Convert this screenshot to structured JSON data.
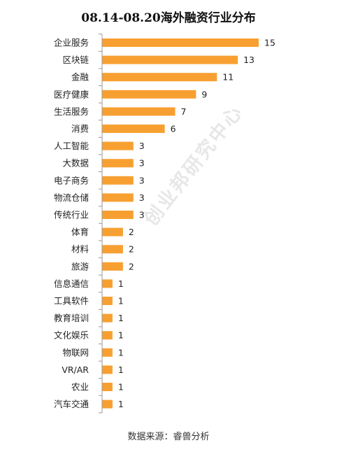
{
  "title": "08.14-08.20海外融资行业分布",
  "source": "数据来源：睿兽分析",
  "watermark": "创业邦研究中心",
  "colors": {
    "bar": "#F7A031",
    "axis": "#999999",
    "text": "#222222"
  },
  "chart_data": {
    "type": "bar",
    "orientation": "horizontal",
    "title": "08.14-08.20海外融资行业分布",
    "categories": [
      "企业服务",
      "区块链",
      "金融",
      "医疗健康",
      "生活服务",
      "消费",
      "人工智能",
      "大数据",
      "电子商务",
      "物流仓储",
      "传统行业",
      "体育",
      "材料",
      "旅游",
      "信息通信",
      "工具软件",
      "教育培训",
      "文化娱乐",
      "物联网",
      "VR/AR",
      "农业",
      "汽车交通"
    ],
    "values": [
      15,
      13,
      11,
      9,
      7,
      6,
      3,
      3,
      3,
      3,
      3,
      2,
      2,
      2,
      1,
      1,
      1,
      1,
      1,
      1,
      1,
      1
    ],
    "value_labels": [
      "15",
      "13",
      "11",
      "9",
      "7",
      "6",
      "3",
      "3",
      "3",
      "3",
      "3",
      "2",
      "2",
      "2",
      "1",
      "1",
      "1",
      "1",
      "1",
      "1",
      "1",
      "1"
    ],
    "xlim": [
      0,
      15
    ],
    "grid": false,
    "legend": "none"
  }
}
